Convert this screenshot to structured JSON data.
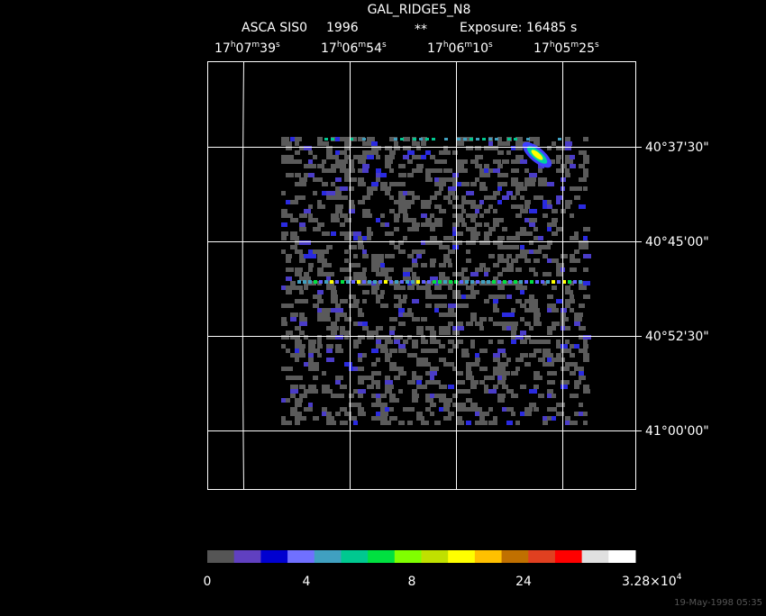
{
  "header": {
    "title": "GAL_RIDGE5_N8",
    "instrument": "ASCA SIS0",
    "year": "1996",
    "marker": "**",
    "exposure": "Exposure: 16485 s"
  },
  "ra_labels": [
    [
      "17",
      "h",
      "07",
      "m",
      "39",
      "s"
    ],
    [
      "17",
      "h",
      "06",
      "m",
      "54",
      "s"
    ],
    [
      "17",
      "h",
      "06",
      "m",
      "10",
      "s"
    ],
    [
      "17",
      "h",
      "05",
      "m",
      "25",
      "s"
    ]
  ],
  "dec_labels": [
    "40°37'30\"",
    "40°45'00\"",
    "40°52'30\"",
    "41°00'00\""
  ],
  "colorbar": {
    "labels": [
      "0",
      "4",
      "8",
      "24"
    ],
    "max_label": [
      "3.28×10",
      "4"
    ]
  },
  "timestamp": "19-May-1998 05:35"
}
